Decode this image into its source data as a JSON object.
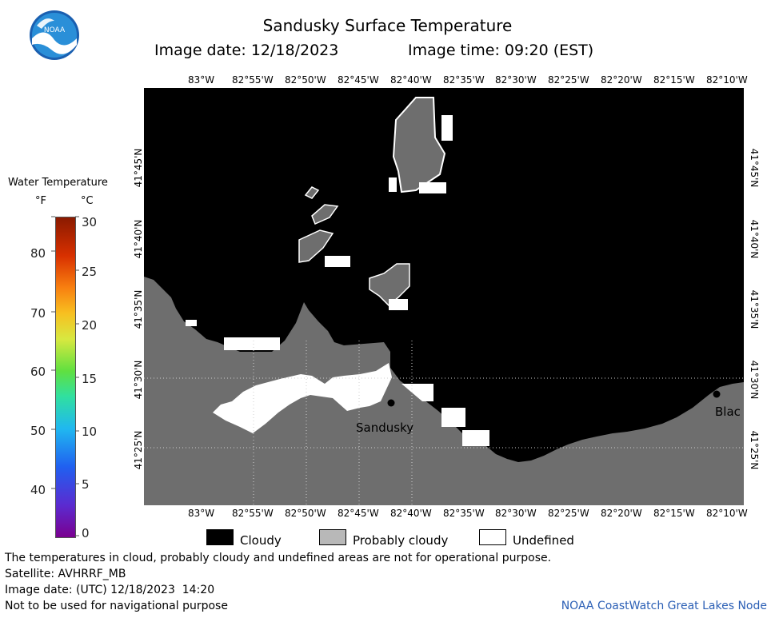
{
  "header": {
    "title": "Sandusky Surface Temperature",
    "image_date": "Image date: 12/18/2023",
    "image_time": "Image time: 09:20 (EST)"
  },
  "colorbar": {
    "title": "Water Temperature",
    "unit_f": "°F",
    "unit_c": "°C",
    "f_ticks": [
      "80",
      "70",
      "60",
      "50",
      "40"
    ],
    "c_ticks": [
      "30",
      "25",
      "20",
      "15",
      "10",
      "5",
      "0"
    ]
  },
  "map": {
    "lon_ticks": [
      "83°W",
      "82°55'W",
      "82°50'W",
      "82°45'W",
      "82°40'W",
      "82°35'W",
      "82°30'W",
      "82°25'W",
      "82°20'W",
      "82°15'W",
      "82°10'W"
    ],
    "lat_ticks": [
      "41°45'N",
      "41°40'N",
      "41°35'N",
      "41°30'N",
      "41°25'N"
    ],
    "place_labels": {
      "sandusky": "Sandusky",
      "blac": "Blac"
    }
  },
  "legend": {
    "cloudy": "Cloudy",
    "probably_cloudy": "Probably cloudy",
    "undefined": "Undefined"
  },
  "footer": {
    "disclaimer": "The temperatures in cloud, probably cloudy and undefined areas are not for operational purpose.",
    "satellite": "Satellite: AVHRRF_MB",
    "utc_date": "Image date: (UTC) 12/18/2023  14:20",
    "nav_warning": "Not to be used for navigational purpose",
    "credit": "NOAA CoastWatch Great Lakes Node"
  },
  "logo": {
    "text": "NOAA"
  },
  "colors": {
    "cloudy": "#000000",
    "probably_cloudy": "#6e6e6e",
    "undefined": "#ffffff",
    "credit_link": "#2b5fb5"
  }
}
